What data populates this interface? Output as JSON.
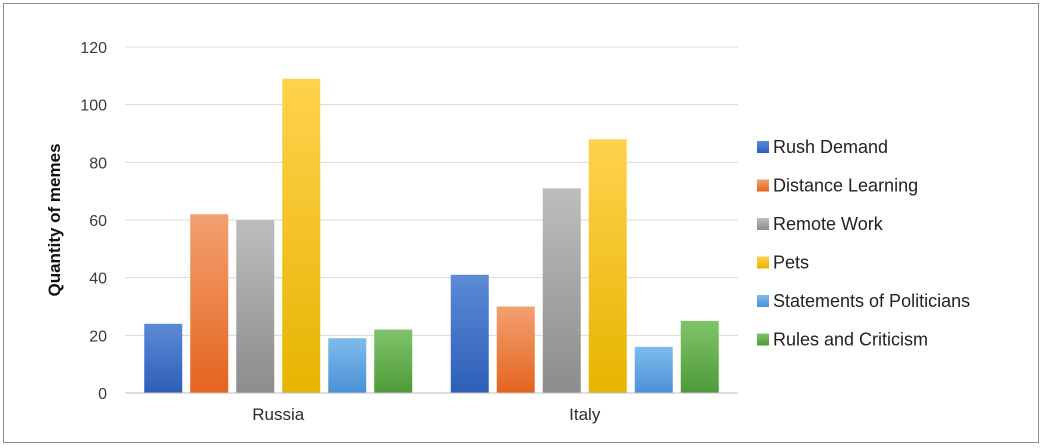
{
  "chart_data": {
    "type": "bar",
    "categories": [
      "Russia",
      "Italy"
    ],
    "series": [
      {
        "name": "Rush Demand",
        "values": [
          24,
          41
        ]
      },
      {
        "name": "Distance Learning",
        "values": [
          62,
          30
        ]
      },
      {
        "name": "Remote Work",
        "values": [
          60,
          71
        ]
      },
      {
        "name": "Pets",
        "values": [
          109,
          88
        ]
      },
      {
        "name": "Statements of Politicians",
        "values": [
          19,
          16
        ]
      },
      {
        "name": "Rules and Criticism",
        "values": [
          22,
          25
        ]
      }
    ],
    "ylabel": "Quantity of memes",
    "xlabel": "",
    "ylim": [
      0,
      120
    ],
    "yticks": [
      0,
      20,
      40,
      60,
      80,
      100,
      120
    ],
    "grid": true,
    "legend_position": "right",
    "colors": [
      {
        "top": "#5b8ad6",
        "bottom": "#2e5fb8"
      },
      {
        "top": "#f3a070",
        "bottom": "#e4641f"
      },
      {
        "top": "#bdbdbd",
        "bottom": "#8c8c8c"
      },
      {
        "top": "#ffd24d",
        "bottom": "#e6b400"
      },
      {
        "top": "#7fbcec",
        "bottom": "#4a90d6"
      },
      {
        "top": "#7fc46a",
        "bottom": "#4f9a3a"
      }
    ]
  }
}
